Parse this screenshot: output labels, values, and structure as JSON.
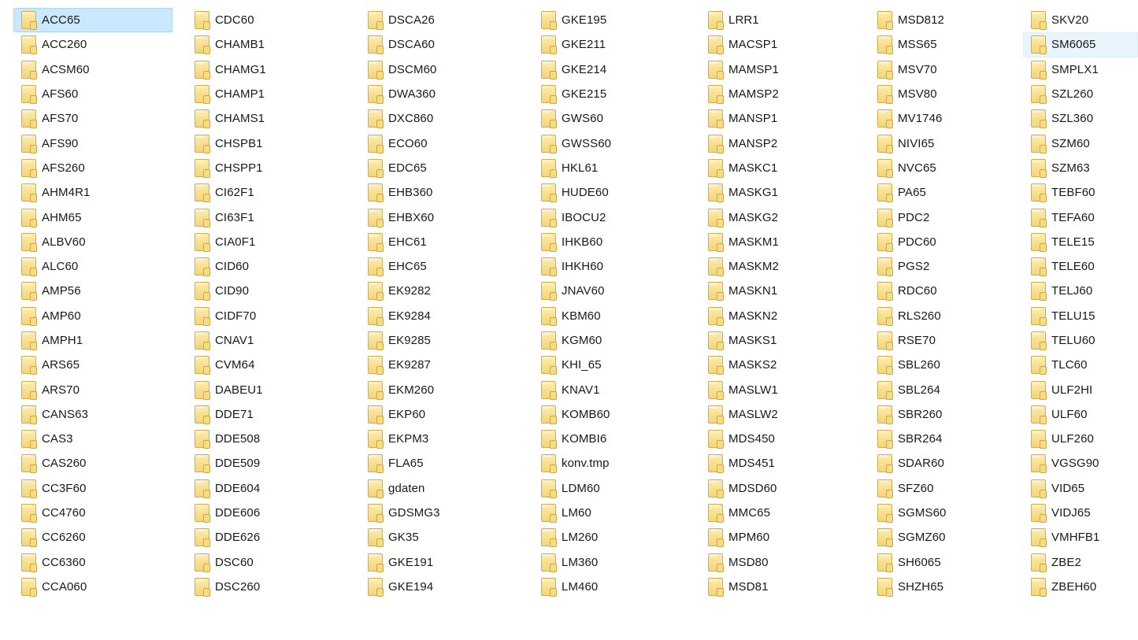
{
  "app": {
    "name": "file-explorer-folder-grid",
    "view_mode": "list"
  },
  "colors": {
    "background": "#ffffff",
    "text": "#191919",
    "selection_bg": "#cce8ff",
    "selection_border": "#a9d6f5",
    "hover_bg": "#e9f5fd",
    "hover_border": "#dceefb",
    "folder_body": "#f9e194",
    "folder_border": "#d4ac4e"
  },
  "explorer": {
    "selected_item": "ACC65",
    "hovered_item": "SM6065",
    "columns": [
      {
        "items": [
          {
            "name": "ACC65",
            "state": "selected"
          },
          {
            "name": "ACC260"
          },
          {
            "name": "ACSM60"
          },
          {
            "name": "AFS60"
          },
          {
            "name": "AFS70"
          },
          {
            "name": "AFS90"
          },
          {
            "name": "AFS260"
          },
          {
            "name": "AHM4R1"
          },
          {
            "name": "AHM65"
          },
          {
            "name": "ALBV60"
          },
          {
            "name": "ALC60"
          },
          {
            "name": "AMP56"
          },
          {
            "name": "AMP60"
          },
          {
            "name": "AMPH1"
          },
          {
            "name": "ARS65"
          },
          {
            "name": "ARS70"
          },
          {
            "name": "CANS63"
          },
          {
            "name": "CAS3"
          },
          {
            "name": "CAS260"
          },
          {
            "name": "CC3F60"
          },
          {
            "name": "CC4760"
          },
          {
            "name": "CC6260"
          },
          {
            "name": "CC6360"
          },
          {
            "name": "CCA060"
          }
        ]
      },
      {
        "items": [
          {
            "name": "CDC60"
          },
          {
            "name": "CHAMB1"
          },
          {
            "name": "CHAMG1"
          },
          {
            "name": "CHAMP1"
          },
          {
            "name": "CHAMS1"
          },
          {
            "name": "CHSPB1"
          },
          {
            "name": "CHSPP1"
          },
          {
            "name": "CI62F1"
          },
          {
            "name": "CI63F1"
          },
          {
            "name": "CIA0F1"
          },
          {
            "name": "CID60"
          },
          {
            "name": "CID90"
          },
          {
            "name": "CIDF70"
          },
          {
            "name": "CNAV1"
          },
          {
            "name": "CVM64"
          },
          {
            "name": "DABEU1"
          },
          {
            "name": "DDE71"
          },
          {
            "name": "DDE508"
          },
          {
            "name": "DDE509"
          },
          {
            "name": "DDE604"
          },
          {
            "name": "DDE606"
          },
          {
            "name": "DDE626"
          },
          {
            "name": "DSC60"
          },
          {
            "name": "DSC260"
          }
        ]
      },
      {
        "items": [
          {
            "name": "DSCA26"
          },
          {
            "name": "DSCA60"
          },
          {
            "name": "DSCM60"
          },
          {
            "name": "DWA360"
          },
          {
            "name": "DXC860"
          },
          {
            "name": "ECO60"
          },
          {
            "name": "EDC65"
          },
          {
            "name": "EHB360"
          },
          {
            "name": "EHBX60"
          },
          {
            "name": "EHC61"
          },
          {
            "name": "EHC65"
          },
          {
            "name": "EK9282"
          },
          {
            "name": "EK9284"
          },
          {
            "name": "EK9285"
          },
          {
            "name": "EK9287"
          },
          {
            "name": "EKM260"
          },
          {
            "name": "EKP60"
          },
          {
            "name": "EKPM3"
          },
          {
            "name": "FLA65"
          },
          {
            "name": "gdaten"
          },
          {
            "name": "GDSMG3"
          },
          {
            "name": "GK35"
          },
          {
            "name": "GKE191"
          },
          {
            "name": "GKE194"
          }
        ]
      },
      {
        "items": [
          {
            "name": "GKE195"
          },
          {
            "name": "GKE211"
          },
          {
            "name": "GKE214"
          },
          {
            "name": "GKE215"
          },
          {
            "name": "GWS60"
          },
          {
            "name": "GWSS60"
          },
          {
            "name": "HKL61"
          },
          {
            "name": "HUDE60"
          },
          {
            "name": "IBOCU2"
          },
          {
            "name": "IHKB60"
          },
          {
            "name": "IHKH60"
          },
          {
            "name": "JNAV60"
          },
          {
            "name": "KBM60"
          },
          {
            "name": "KGM60"
          },
          {
            "name": "KHI_65"
          },
          {
            "name": "KNAV1"
          },
          {
            "name": "KOMB60"
          },
          {
            "name": "KOMBI6"
          },
          {
            "name": "konv.tmp"
          },
          {
            "name": "LDM60"
          },
          {
            "name": "LM60"
          },
          {
            "name": "LM260"
          },
          {
            "name": "LM360"
          },
          {
            "name": "LM460"
          }
        ]
      },
      {
        "items": [
          {
            "name": "LRR1"
          },
          {
            "name": "MACSP1"
          },
          {
            "name": "MAMSP1"
          },
          {
            "name": "MAMSP2"
          },
          {
            "name": "MANSP1"
          },
          {
            "name": "MANSP2"
          },
          {
            "name": "MASKC1"
          },
          {
            "name": "MASKG1"
          },
          {
            "name": "MASKG2"
          },
          {
            "name": "MASKM1"
          },
          {
            "name": "MASKM2"
          },
          {
            "name": "MASKN1"
          },
          {
            "name": "MASKN2"
          },
          {
            "name": "MASKS1"
          },
          {
            "name": "MASKS2"
          },
          {
            "name": "MASLW1"
          },
          {
            "name": "MASLW2"
          },
          {
            "name": "MDS450"
          },
          {
            "name": "MDS451"
          },
          {
            "name": "MDSD60"
          },
          {
            "name": "MMC65"
          },
          {
            "name": "MPM60"
          },
          {
            "name": "MSD80"
          },
          {
            "name": "MSD81"
          }
        ]
      },
      {
        "items": [
          {
            "name": "MSD812"
          },
          {
            "name": "MSS65"
          },
          {
            "name": "MSV70"
          },
          {
            "name": "MSV80"
          },
          {
            "name": "MV1746"
          },
          {
            "name": "NIVI65"
          },
          {
            "name": "NVC65"
          },
          {
            "name": "PA65"
          },
          {
            "name": "PDC2"
          },
          {
            "name": "PDC60"
          },
          {
            "name": "PGS2"
          },
          {
            "name": "RDC60"
          },
          {
            "name": "RLS260"
          },
          {
            "name": "RSE70"
          },
          {
            "name": "SBL260"
          },
          {
            "name": "SBL264"
          },
          {
            "name": "SBR260"
          },
          {
            "name": "SBR264"
          },
          {
            "name": "SDAR60"
          },
          {
            "name": "SFZ60"
          },
          {
            "name": "SGMS60"
          },
          {
            "name": "SGMZ60"
          },
          {
            "name": "SH6065"
          },
          {
            "name": "SHZH65"
          }
        ]
      },
      {
        "items": [
          {
            "name": "SKV20"
          },
          {
            "name": "SM6065",
            "state": "hover"
          },
          {
            "name": "SMPLX1"
          },
          {
            "name": "SZL260"
          },
          {
            "name": "SZL360"
          },
          {
            "name": "SZM60"
          },
          {
            "name": "SZM63"
          },
          {
            "name": "TEBF60"
          },
          {
            "name": "TEFA60"
          },
          {
            "name": "TELE15"
          },
          {
            "name": "TELE60"
          },
          {
            "name": "TELJ60"
          },
          {
            "name": "TELU15"
          },
          {
            "name": "TELU60"
          },
          {
            "name": "TLC60"
          },
          {
            "name": "ULF2HI"
          },
          {
            "name": "ULF60"
          },
          {
            "name": "ULF260"
          },
          {
            "name": "VGSG90"
          },
          {
            "name": "VID65"
          },
          {
            "name": "VIDJ65"
          },
          {
            "name": "VMHFB1"
          },
          {
            "name": "ZBE2"
          },
          {
            "name": "ZBEH60"
          }
        ]
      }
    ]
  }
}
